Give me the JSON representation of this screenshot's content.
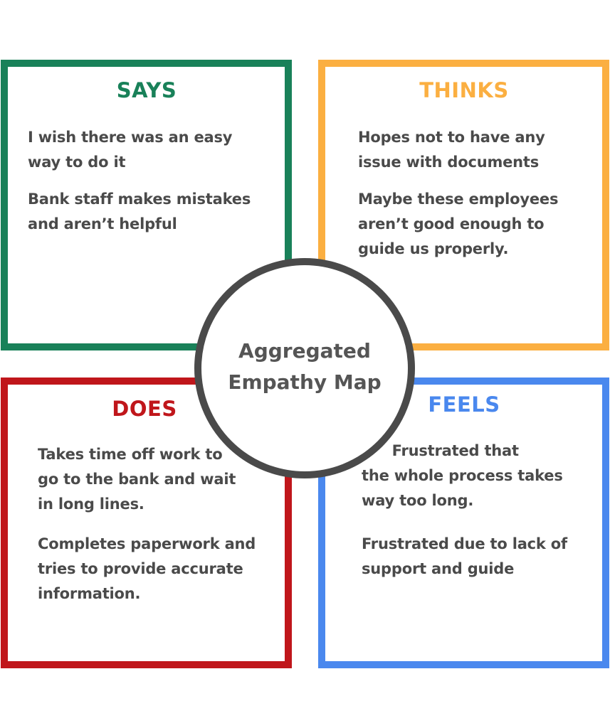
{
  "colors": {
    "says": "#198159",
    "thinks": "#FBAF41",
    "does": "#C0161B",
    "feels": "#4A88EE",
    "circle": "#4A4A4A",
    "text": "#4A4A4A"
  },
  "center": {
    "title": "Aggregated\nEmpathy Map"
  },
  "quadrants": {
    "says": {
      "title": "SAYS",
      "items": [
        "I wish there was an easy\nway to do it",
        "Bank staff makes mistakes\nand aren’t helpful"
      ]
    },
    "thinks": {
      "title": "THINKS",
      "items": [
        "Hopes not to have any\nissue with documents",
        "Maybe these employees\naren’t good enough to\nguide us properly."
      ]
    },
    "does": {
      "title": "DOES",
      "items": [
        "Takes time off work to\ngo to the bank and wait\nin long lines.",
        "Completes paperwork and\ntries to provide accurate\ninformation."
      ]
    },
    "feels": {
      "title": "FEELS",
      "items": [
        "      Frustrated that\nthe whole process takes\nway too long.",
        "Frustrated due to lack of\nsupport and guide"
      ]
    }
  }
}
